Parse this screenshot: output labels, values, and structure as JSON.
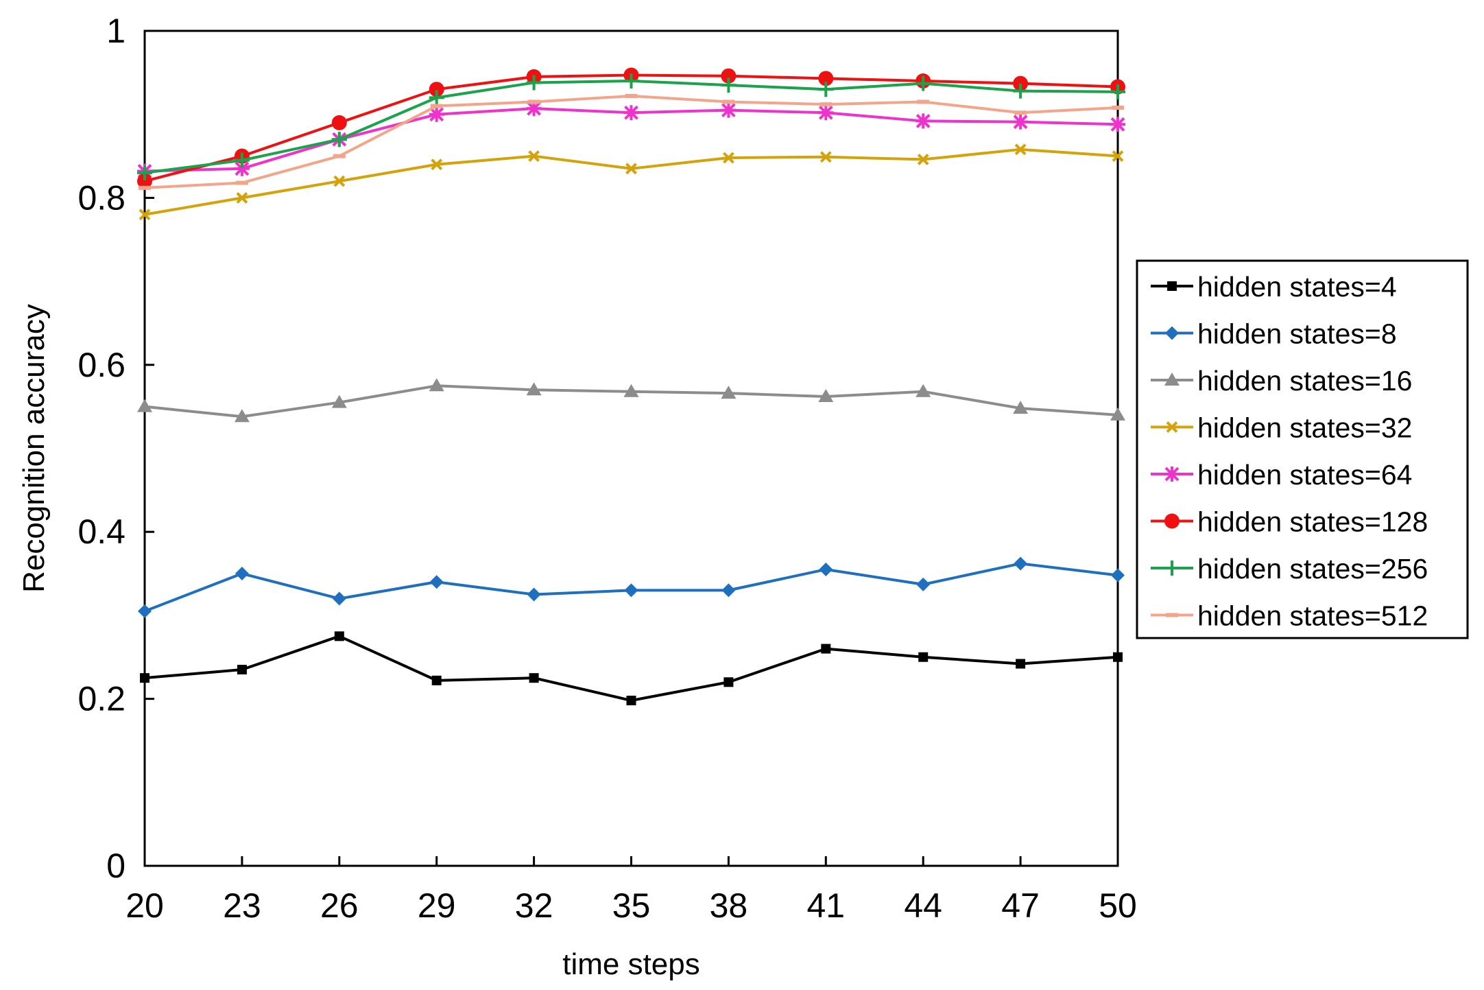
{
  "chart_data": {
    "type": "line",
    "title": "",
    "xlabel": "time steps",
    "ylabel": "Recognition accuracy",
    "x": [
      20,
      23,
      26,
      29,
      32,
      35,
      38,
      41,
      44,
      47,
      50
    ],
    "xlim": [
      20,
      50
    ],
    "ylim": [
      0,
      1
    ],
    "y_ticks": [
      0,
      0.2,
      0.4,
      0.6,
      0.8,
      1
    ],
    "y_tick_labels": [
      "0",
      "0.2",
      "0.4",
      "0.6",
      "0.8",
      "1"
    ],
    "x_tick_labels": [
      "20",
      "23",
      "26",
      "29",
      "32",
      "35",
      "38",
      "41",
      "44",
      "47",
      "50"
    ],
    "grid": false,
    "legend_position": "right",
    "series": [
      {
        "name": "hidden states=4",
        "color": "#000000",
        "marker": "square",
        "values": [
          0.225,
          0.235,
          0.275,
          0.222,
          0.225,
          0.198,
          0.22,
          0.26,
          0.25,
          0.242,
          0.25
        ]
      },
      {
        "name": "hidden states=8",
        "color": "#1f6fbf",
        "marker": "diamond",
        "values": [
          0.305,
          0.35,
          0.32,
          0.34,
          0.325,
          0.33,
          0.33,
          0.355,
          0.337,
          0.362,
          0.348
        ]
      },
      {
        "name": "hidden states=16",
        "color": "#8c8c8c",
        "marker": "triangle",
        "values": [
          0.55,
          0.538,
          0.555,
          0.575,
          0.57,
          0.568,
          0.566,
          0.562,
          0.568,
          0.548,
          0.54
        ]
      },
      {
        "name": "hidden states=32",
        "color": "#d4a20a",
        "marker": "x",
        "values": [
          0.78,
          0.8,
          0.82,
          0.84,
          0.85,
          0.835,
          0.848,
          0.849,
          0.846,
          0.858,
          0.85
        ]
      },
      {
        "name": "hidden states=64",
        "color": "#ee33cc",
        "marker": "star",
        "values": [
          0.832,
          0.835,
          0.87,
          0.9,
          0.907,
          0.902,
          0.905,
          0.902,
          0.892,
          0.891,
          0.888
        ]
      },
      {
        "name": "hidden states=128",
        "color": "#ee1111",
        "marker": "circle",
        "values": [
          0.82,
          0.85,
          0.89,
          0.93,
          0.945,
          0.947,
          0.946,
          0.943,
          0.94,
          0.937,
          0.933
        ]
      },
      {
        "name": "hidden states=256",
        "color": "#1aa34a",
        "marker": "plus",
        "values": [
          0.83,
          0.845,
          0.87,
          0.92,
          0.938,
          0.94,
          0.935,
          0.93,
          0.937,
          0.928,
          0.927
        ]
      },
      {
        "name": "hidden states=512",
        "color": "#f2a58a",
        "marker": "dash",
        "values": [
          0.812,
          0.818,
          0.85,
          0.91,
          0.915,
          0.922,
          0.915,
          0.912,
          0.915,
          0.902,
          0.908
        ]
      }
    ]
  }
}
